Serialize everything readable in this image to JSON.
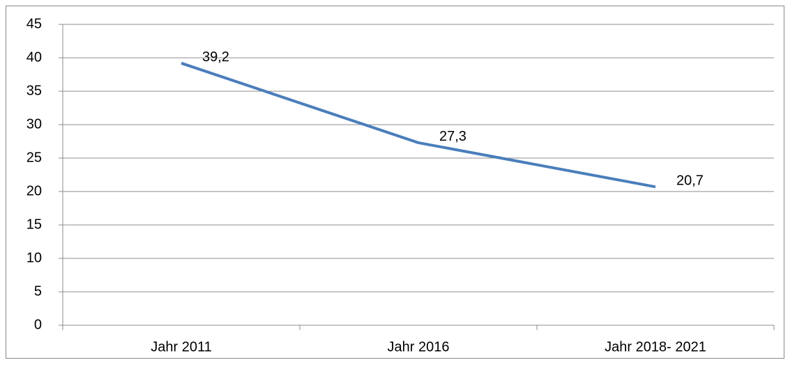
{
  "chart_data": {
    "type": "line",
    "categories": [
      "Jahr 2011",
      "Jahr 2016",
      "Jahr 2018- 2021"
    ],
    "series": [
      {
        "color": "#4a7ebb",
        "values": [
          39.2,
          27.3,
          20.7
        ],
        "value_labels": [
          "39,2",
          "27,3",
          "20,7"
        ]
      }
    ],
    "ylim": [
      0,
      45
    ],
    "yticks": [
      0,
      5,
      10,
      15,
      20,
      25,
      30,
      35,
      40,
      45
    ],
    "grid": true
  }
}
